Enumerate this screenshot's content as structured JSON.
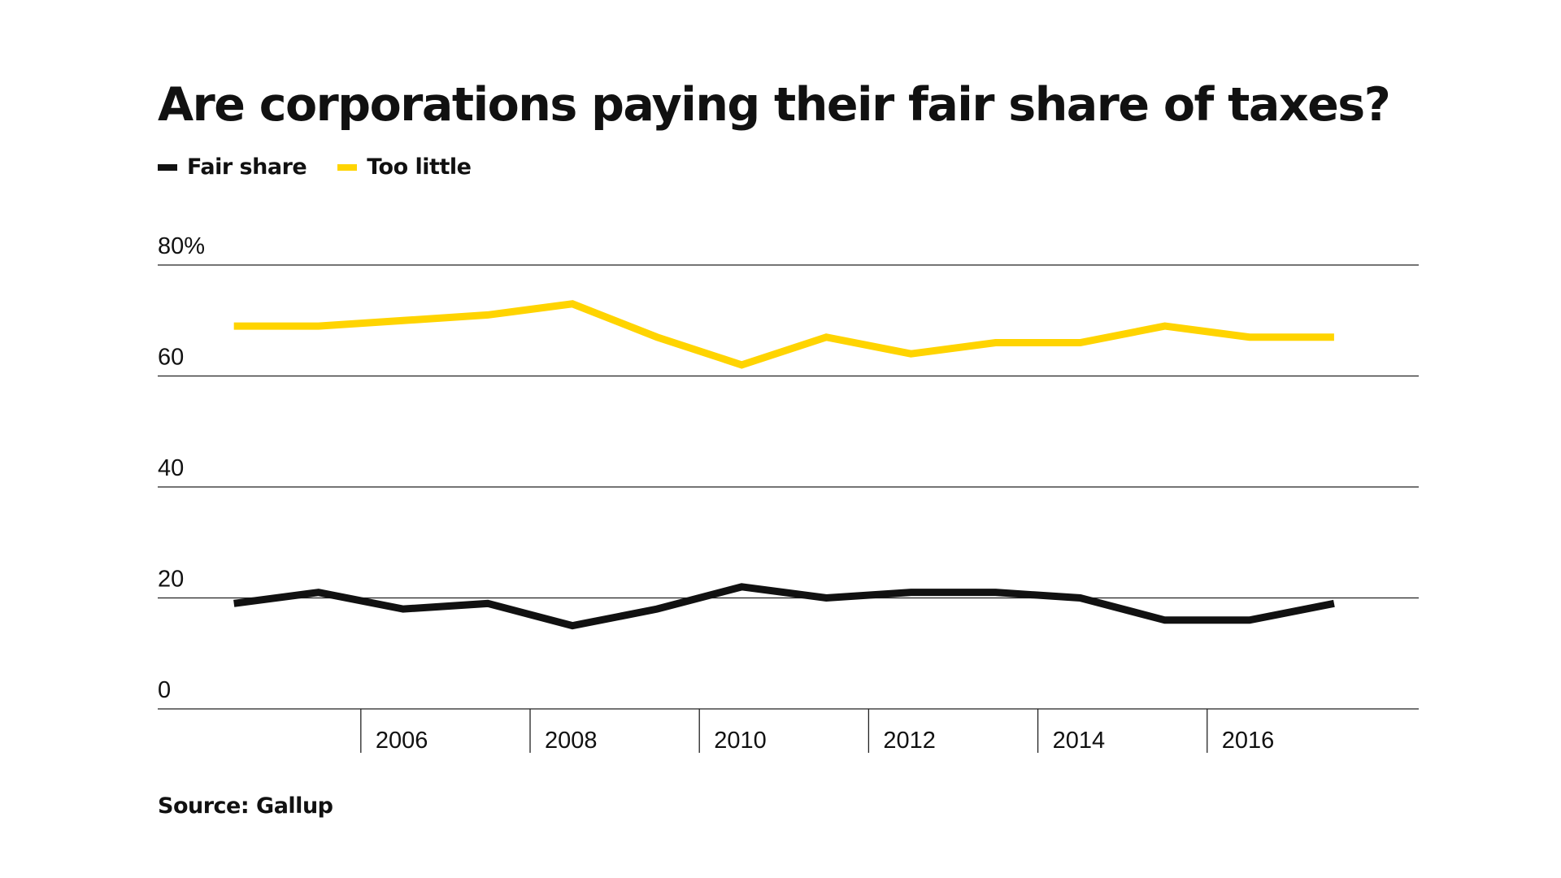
{
  "chart_data": {
    "type": "line",
    "title": "Are corporations paying their fair share of taxes?",
    "source": "Source: Gallup",
    "x": [
      2004,
      2005,
      2006,
      2007,
      2008,
      2009,
      2010,
      2011,
      2012,
      2013,
      2014,
      2015,
      2016,
      2017
    ],
    "x_ticks": [
      2006,
      2008,
      2010,
      2012,
      2014,
      2016
    ],
    "x_tick_labels": [
      "2006",
      "2008",
      "2010",
      "2012",
      "2014",
      "2016"
    ],
    "xlim": [
      2003.1,
      2018.0
    ],
    "y_ticks": [
      0,
      20,
      40,
      60,
      80
    ],
    "y_tick_labels": [
      "0",
      "20",
      "40",
      "60",
      "80%"
    ],
    "ylim": [
      0,
      80
    ],
    "grid": true,
    "legend_position": "top-left",
    "series": [
      {
        "name": "Fair share",
        "color": "#111111",
        "values": [
          19,
          21,
          18,
          19,
          15,
          18,
          22,
          20,
          21,
          21,
          20,
          16,
          16,
          19
        ]
      },
      {
        "name": "Too little",
        "color": "#FFD400",
        "values": [
          69,
          69,
          70,
          71,
          73,
          67,
          62,
          67,
          64,
          66,
          66,
          69,
          67,
          67
        ]
      }
    ]
  }
}
